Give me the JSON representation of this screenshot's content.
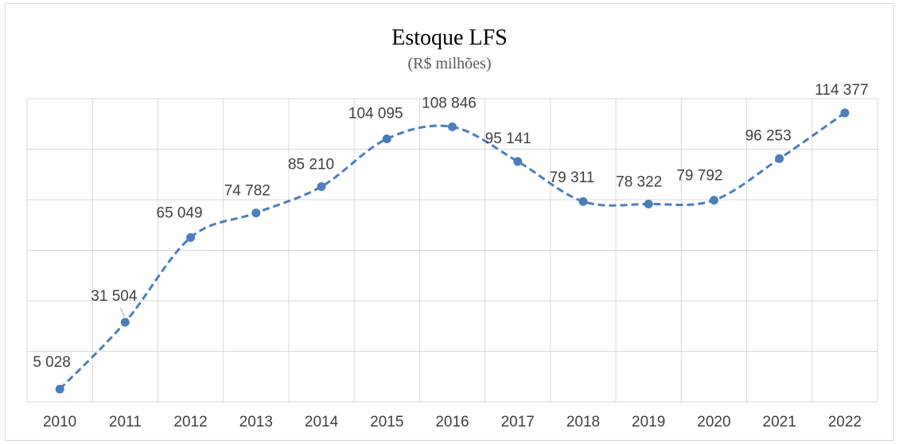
{
  "chart_data": {
    "type": "line",
    "title": "Estoque LFS",
    "subtitle": "(R$ milhões)",
    "categories": [
      "2010",
      "2011",
      "2012",
      "2013",
      "2014",
      "2015",
      "2016",
      "2017",
      "2018",
      "2019",
      "2020",
      "2021",
      "2022"
    ],
    "series": [
      {
        "values": [
          5028,
          31504,
          65049,
          74782,
          85210,
          104095,
          108846,
          95141,
          79311,
          78322,
          79792,
          96253,
          114377
        ],
        "labels": [
          "5 028",
          "31 504",
          "65 049",
          "74 782",
          "85 210",
          "104 095",
          "108 846",
          "95 141",
          "79 311",
          "78 322",
          "79 792",
          "96 253",
          "114 377"
        ],
        "color": "#4a7ebb",
        "line_style": "dashed",
        "smooth": true
      }
    ],
    "ylim": [
      0,
      120000
    ],
    "y_gridlines": 20000,
    "grid": true,
    "y_tick_labels_shown": false,
    "xlabel": "",
    "ylabel": ""
  }
}
